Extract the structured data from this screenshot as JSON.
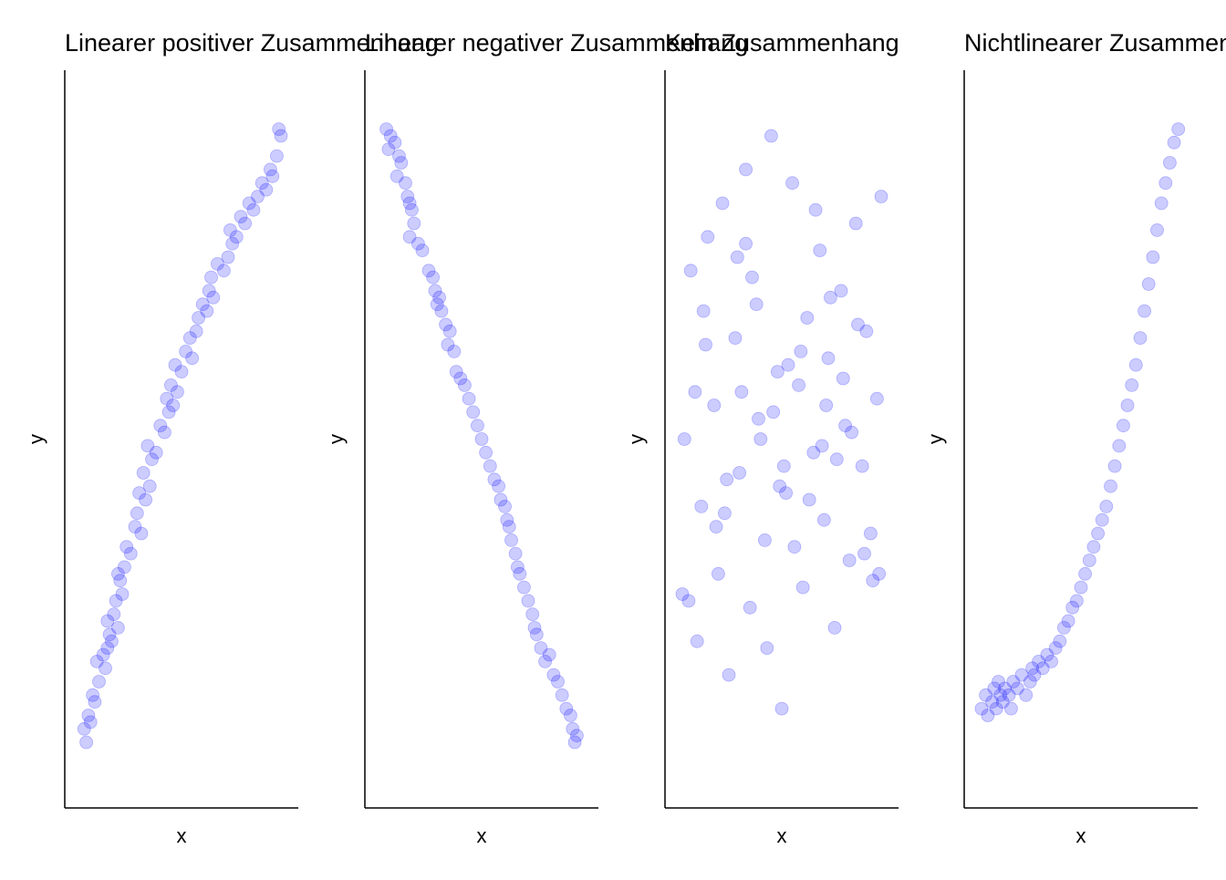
{
  "chart_data": [
    {
      "type": "scatter",
      "title": "Linearer positiver Zusammenhang",
      "xlabel": "x",
      "ylabel": "y",
      "xlim": [
        0.0,
        1.0
      ],
      "ylim": [
        0.0,
        1.0
      ],
      "grid": false,
      "point_color": "#0000ff",
      "x": [
        0.05,
        0.07,
        0.04,
        0.09,
        0.06,
        0.08,
        0.11,
        0.1,
        0.14,
        0.13,
        0.15,
        0.16,
        0.15,
        0.17,
        0.18,
        0.19,
        0.2,
        0.21,
        0.22,
        0.2,
        0.23,
        0.24,
        0.26,
        0.28,
        0.29,
        0.31,
        0.3,
        0.33,
        0.35,
        0.32,
        0.36,
        0.34,
        0.38,
        0.4,
        0.42,
        0.44,
        0.43,
        0.46,
        0.45,
        0.48,
        0.47,
        0.5,
        0.52,
        0.55,
        0.54,
        0.57,
        0.58,
        0.6,
        0.62,
        0.63,
        0.65,
        0.64,
        0.67,
        0.7,
        0.72,
        0.74,
        0.73,
        0.76,
        0.78,
        0.8,
        0.82,
        0.84,
        0.86,
        0.88,
        0.9,
        0.92,
        0.93,
        0.95,
        0.97,
        0.96
      ],
      "y": [
        0.05,
        0.08,
        0.07,
        0.11,
        0.09,
        0.12,
        0.14,
        0.17,
        0.16,
        0.18,
        0.19,
        0.21,
        0.23,
        0.2,
        0.24,
        0.26,
        0.22,
        0.29,
        0.27,
        0.3,
        0.31,
        0.34,
        0.33,
        0.37,
        0.39,
        0.36,
        0.42,
        0.41,
        0.43,
        0.45,
        0.47,
        0.49,
        0.48,
        0.52,
        0.51,
        0.54,
        0.56,
        0.55,
        0.58,
        0.57,
        0.61,
        0.6,
        0.63,
        0.62,
        0.65,
        0.66,
        0.68,
        0.7,
        0.69,
        0.72,
        0.71,
        0.74,
        0.76,
        0.75,
        0.77,
        0.79,
        0.81,
        0.8,
        0.83,
        0.82,
        0.85,
        0.84,
        0.86,
        0.88,
        0.87,
        0.9,
        0.89,
        0.92,
        0.95,
        0.96
      ]
    },
    {
      "type": "scatter",
      "title": "Linearer negativer Zusammenhang",
      "xlabel": "x",
      "ylabel": "y",
      "xlim": [
        0.0,
        1.0
      ],
      "ylim": [
        0.0,
        1.0
      ],
      "grid": false,
      "point_color": "#0000ff",
      "x": [
        0.05,
        0.07,
        0.06,
        0.09,
        0.11,
        0.12,
        0.1,
        0.14,
        0.15,
        0.16,
        0.17,
        0.18,
        0.16,
        0.2,
        0.22,
        0.25,
        0.27,
        0.28,
        0.29,
        0.3,
        0.31,
        0.33,
        0.35,
        0.34,
        0.37,
        0.38,
        0.4,
        0.42,
        0.44,
        0.46,
        0.48,
        0.5,
        0.52,
        0.54,
        0.56,
        0.58,
        0.59,
        0.61,
        0.62,
        0.63,
        0.64,
        0.66,
        0.67,
        0.68,
        0.7,
        0.72,
        0.74,
        0.75,
        0.76,
        0.78,
        0.8,
        0.82,
        0.84,
        0.86,
        0.88,
        0.9,
        0.92,
        0.93,
        0.95,
        0.94
      ],
      "y": [
        0.96,
        0.95,
        0.93,
        0.94,
        0.92,
        0.91,
        0.89,
        0.88,
        0.86,
        0.85,
        0.84,
        0.82,
        0.8,
        0.79,
        0.78,
        0.75,
        0.74,
        0.72,
        0.7,
        0.71,
        0.69,
        0.67,
        0.66,
        0.64,
        0.63,
        0.6,
        0.59,
        0.58,
        0.56,
        0.54,
        0.52,
        0.5,
        0.48,
        0.46,
        0.44,
        0.43,
        0.41,
        0.4,
        0.38,
        0.37,
        0.35,
        0.33,
        0.31,
        0.3,
        0.28,
        0.26,
        0.24,
        0.22,
        0.21,
        0.19,
        0.17,
        0.18,
        0.15,
        0.14,
        0.12,
        0.1,
        0.09,
        0.07,
        0.06,
        0.05
      ]
    },
    {
      "type": "scatter",
      "title": "Kein Zusammenhang",
      "xlabel": "x",
      "ylabel": "y",
      "xlim": [
        0.0,
        1.0
      ],
      "ylim": [
        0.0,
        1.0
      ],
      "grid": false,
      "point_color": "#0000ff",
      "x": [
        0.04,
        0.07,
        0.1,
        0.12,
        0.15,
        0.18,
        0.2,
        0.22,
        0.25,
        0.28,
        0.3,
        0.33,
        0.35,
        0.38,
        0.4,
        0.42,
        0.45,
        0.48,
        0.5,
        0.52,
        0.55,
        0.58,
        0.6,
        0.62,
        0.65,
        0.68,
        0.7,
        0.72,
        0.75,
        0.78,
        0.8,
        0.82,
        0.85,
        0.88,
        0.9,
        0.92,
        0.95,
        0.97,
        0.06,
        0.14,
        0.24,
        0.36,
        0.46,
        0.56,
        0.66,
        0.76,
        0.86,
        0.96,
        0.09,
        0.19,
        0.29,
        0.39,
        0.49,
        0.59,
        0.69,
        0.79,
        0.89,
        0.03,
        0.13,
        0.23,
        0.33,
        0.43,
        0.53,
        0.63,
        0.73,
        0.83,
        0.93,
        0.31,
        0.51,
        0.71
      ],
      "y": [
        0.5,
        0.75,
        0.2,
        0.4,
        0.8,
        0.55,
        0.3,
        0.85,
        0.15,
        0.65,
        0.45,
        0.9,
        0.25,
        0.7,
        0.5,
        0.35,
        0.95,
        0.6,
        0.1,
        0.42,
        0.88,
        0.58,
        0.28,
        0.68,
        0.48,
        0.78,
        0.38,
        0.62,
        0.22,
        0.72,
        0.52,
        0.32,
        0.82,
        0.46,
        0.66,
        0.36,
        0.56,
        0.86,
        0.26,
        0.64,
        0.44,
        0.74,
        0.54,
        0.34,
        0.84,
        0.47,
        0.67,
        0.3,
        0.57,
        0.37,
        0.77,
        0.53,
        0.43,
        0.63,
        0.49,
        0.59,
        0.33,
        0.27,
        0.69,
        0.39,
        0.79,
        0.19,
        0.61,
        0.41,
        0.71,
        0.51,
        0.29,
        0.57,
        0.46,
        0.55
      ]
    },
    {
      "type": "scatter",
      "title": "Nichtlinearer Zusammenhang",
      "xlabel": "x",
      "ylabel": "y",
      "xlim": [
        0.0,
        1.0
      ],
      "ylim": [
        0.0,
        1.0
      ],
      "grid": false,
      "point_color": "#0000ff",
      "x": [
        0.03,
        0.05,
        0.06,
        0.08,
        0.09,
        0.1,
        0.12,
        0.11,
        0.13,
        0.14,
        0.16,
        0.17,
        0.18,
        0.2,
        0.22,
        0.24,
        0.26,
        0.27,
        0.28,
        0.3,
        0.32,
        0.34,
        0.36,
        0.38,
        0.4,
        0.42,
        0.44,
        0.46,
        0.48,
        0.5,
        0.52,
        0.54,
        0.56,
        0.58,
        0.6,
        0.62,
        0.64,
        0.66,
        0.68,
        0.7,
        0.72,
        0.74,
        0.76,
        0.78,
        0.8,
        0.82,
        0.84,
        0.86,
        0.88,
        0.9,
        0.92,
        0.94,
        0.96
      ],
      "y": [
        0.1,
        0.12,
        0.09,
        0.11,
        0.13,
        0.1,
        0.12,
        0.14,
        0.11,
        0.13,
        0.12,
        0.1,
        0.14,
        0.13,
        0.15,
        0.12,
        0.14,
        0.16,
        0.15,
        0.17,
        0.16,
        0.18,
        0.17,
        0.19,
        0.2,
        0.22,
        0.23,
        0.25,
        0.26,
        0.28,
        0.3,
        0.32,
        0.34,
        0.36,
        0.38,
        0.4,
        0.43,
        0.46,
        0.49,
        0.52,
        0.55,
        0.58,
        0.61,
        0.65,
        0.69,
        0.73,
        0.77,
        0.81,
        0.85,
        0.88,
        0.91,
        0.94,
        0.96
      ]
    }
  ]
}
